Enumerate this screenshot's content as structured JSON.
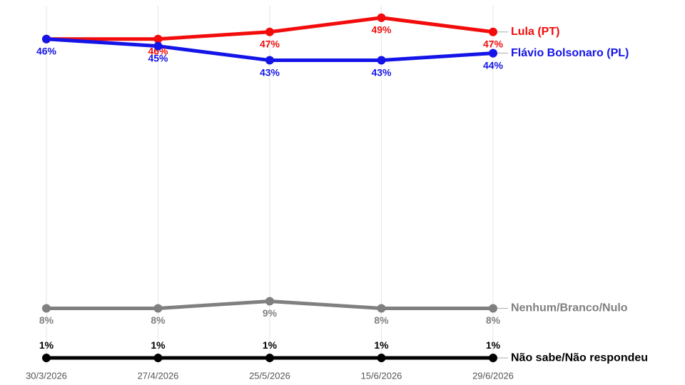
{
  "chart_data": {
    "type": "line",
    "categories": [
      "30/3/2026",
      "27/4/2026",
      "25/5/2026",
      "15/6/2026",
      "29/6/2026"
    ],
    "series": [
      {
        "name": "Lula (PT)",
        "color": "#f20c0c",
        "values": [
          46,
          46,
          47,
          49,
          47
        ],
        "value_labels": [
          null,
          "46%",
          "47%",
          "49%",
          "47%"
        ]
      },
      {
        "name": "Flávio Bolsonaro (PL)",
        "color": "#1414e8",
        "values": [
          46,
          45,
          43,
          43,
          44
        ],
        "value_labels": [
          "46%",
          "45%",
          "43%",
          "43%",
          "44%"
        ]
      },
      {
        "name": "Nenhum/Branco/Nulo",
        "color": "#808080",
        "values": [
          8,
          8,
          9,
          8,
          8
        ],
        "value_labels": [
          "8%",
          "8%",
          "9%",
          "8%",
          "8%"
        ]
      },
      {
        "name": "Não sabe/Não respondeu",
        "color": "#000000",
        "values": [
          1,
          1,
          1,
          1,
          1
        ],
        "value_labels": [
          "1%",
          "1%",
          "1%",
          "1%",
          "1%"
        ]
      }
    ],
    "ylim": [
      0,
      50.5
    ]
  }
}
